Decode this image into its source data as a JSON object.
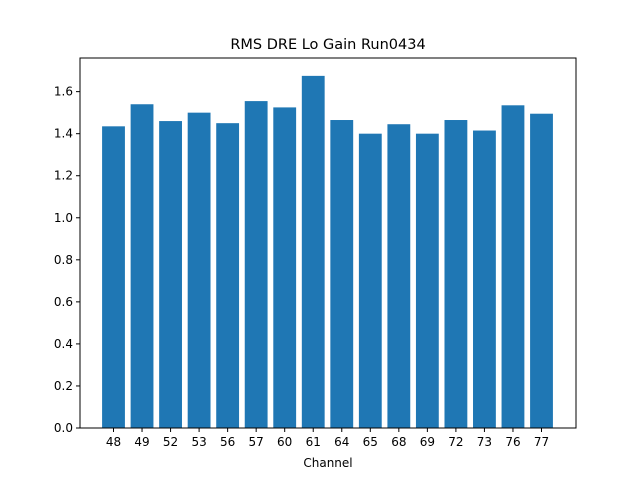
{
  "chart_data": {
    "type": "bar",
    "title": "RMS DRE Lo Gain Run0434",
    "xlabel": "Channel",
    "ylabel": "",
    "categories": [
      "48",
      "49",
      "52",
      "53",
      "56",
      "57",
      "60",
      "61",
      "64",
      "65",
      "68",
      "69",
      "72",
      "73",
      "76",
      "77"
    ],
    "values": [
      1.435,
      1.54,
      1.46,
      1.5,
      1.45,
      1.555,
      1.525,
      1.675,
      1.465,
      1.4,
      1.445,
      1.4,
      1.465,
      1.415,
      1.535,
      1.495
    ],
    "ylim": [
      0,
      1.76
    ],
    "yticks": [
      "0.0",
      "0.2",
      "0.4",
      "0.6",
      "0.8",
      "1.0",
      "1.2",
      "1.4",
      "1.6"
    ],
    "grid": false,
    "bar_color": "#1f77b4"
  }
}
